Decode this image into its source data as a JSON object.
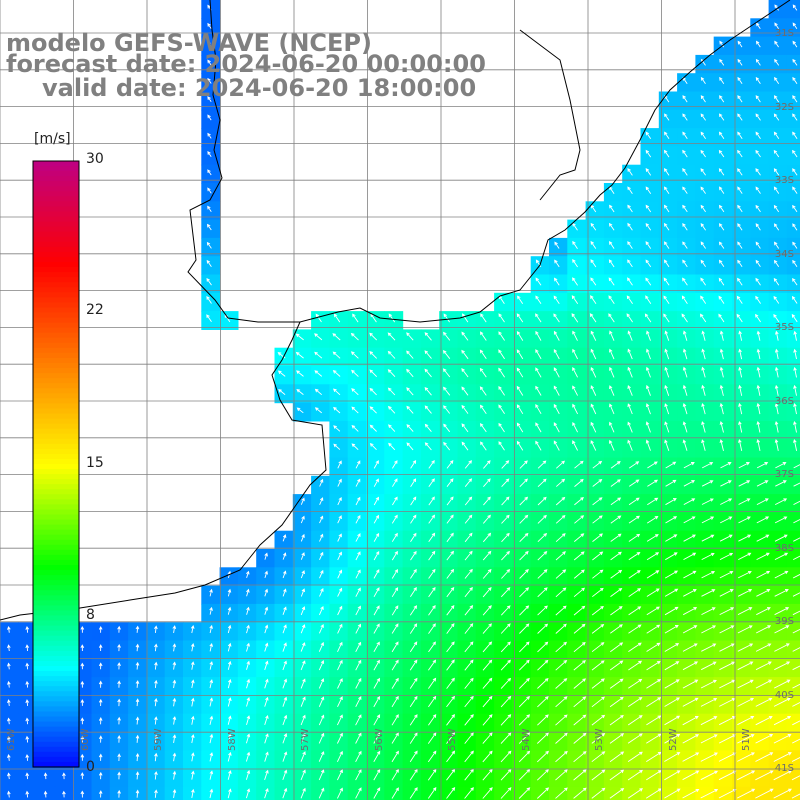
{
  "title": {
    "line1": "modelo GEFS-WAVE (NCEP)",
    "line2": "forecast date: 2024-06-20 00:00:00",
    "line3": "valid date: 2024-06-20 18:00:00"
  },
  "colorbar": {
    "unit": "[m/s]",
    "ticks": [
      "30",
      "22",
      "15",
      "8",
      "0"
    ],
    "tick_values": [
      30,
      22,
      15,
      8,
      0
    ],
    "min": 0,
    "max": 30,
    "colors": [
      "#0000ff",
      "#00ffff",
      "#00ff00",
      "#ffff00",
      "#ff8000",
      "#ff0000",
      "#c00080"
    ]
  },
  "axes": {
    "lat_labels": [
      "31S",
      "32S",
      "33S",
      "34S",
      "35S",
      "36S",
      "37S",
      "38S",
      "39S",
      "40S",
      "41S"
    ],
    "lon_labels": [
      "61W",
      "60W",
      "59W",
      "58W",
      "57W",
      "56W",
      "55W",
      "54W",
      "53W",
      "52W",
      "51W"
    ],
    "lat_range": [
      -41.5,
      -30.5
    ],
    "lon_range": [
      -61,
      -50.5
    ]
  },
  "map": {
    "region": "Rio de la Plata / Uruguay / southern Brazil",
    "land_color": "#ffffff",
    "grid_color": "#808080",
    "coast_color": "#000000",
    "arrow_color": "#ffffff"
  }
}
